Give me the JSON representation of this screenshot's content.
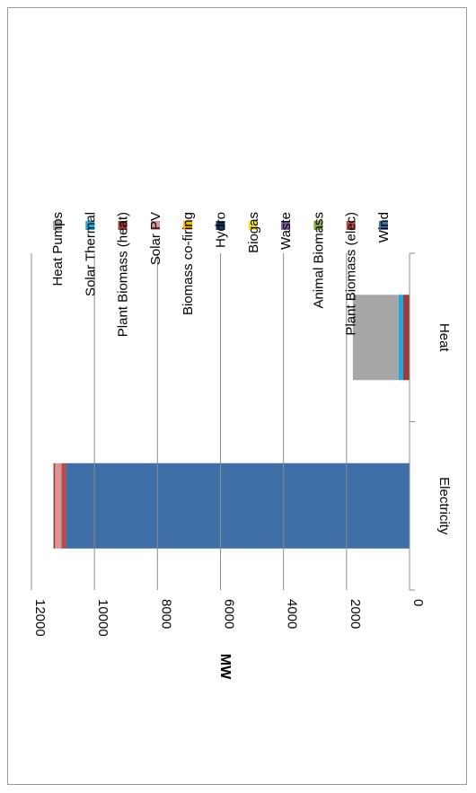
{
  "chart_data": {
    "type": "bar",
    "stacked": true,
    "orientation": "vertical",
    "rotated": true,
    "categories": [
      "Electricity",
      "Heat"
    ],
    "ylabel": "MW",
    "xlabel": "",
    "ylim": [
      0,
      12000
    ],
    "yticks": [
      0,
      2000,
      4000,
      6000,
      8000,
      10000,
      12000
    ],
    "grid": true,
    "legend_position": "right",
    "series": [
      {
        "name": "Wind",
        "color": "#3E6FA7",
        "values": [
          10900,
          0
        ]
      },
      {
        "name": "Plant Biomass (elec)",
        "color": "#B84B4B",
        "values": [
          150,
          0
        ]
      },
      {
        "name": "Animal Biomass",
        "color": "#8BAA4A",
        "values": [
          0,
          0
        ]
      },
      {
        "name": "Waste",
        "color": "#7E5BA0",
        "values": [
          0,
          0
        ]
      },
      {
        "name": "Biogas",
        "color": "#F2E600",
        "values": [
          0,
          0
        ]
      },
      {
        "name": "Hydro",
        "color": "#1A3A5E",
        "values": [
          0,
          0
        ]
      },
      {
        "name": "Biomass co-firing",
        "color": "#F6B400",
        "values": [
          0,
          0
        ]
      },
      {
        "name": "Solar PV",
        "color": "#D79598",
        "values": [
          200,
          0
        ]
      },
      {
        "name": "Plant Biomass (heat)",
        "color": "#9E3A37",
        "values": [
          50,
          200
        ]
      },
      {
        "name": "Solar Thermal",
        "color": "#1FA8DF",
        "values": [
          0,
          150
        ]
      },
      {
        "name": "Heat Pumps",
        "color": "#A6A6A6",
        "values": [
          0,
          1450
        ]
      }
    ]
  }
}
